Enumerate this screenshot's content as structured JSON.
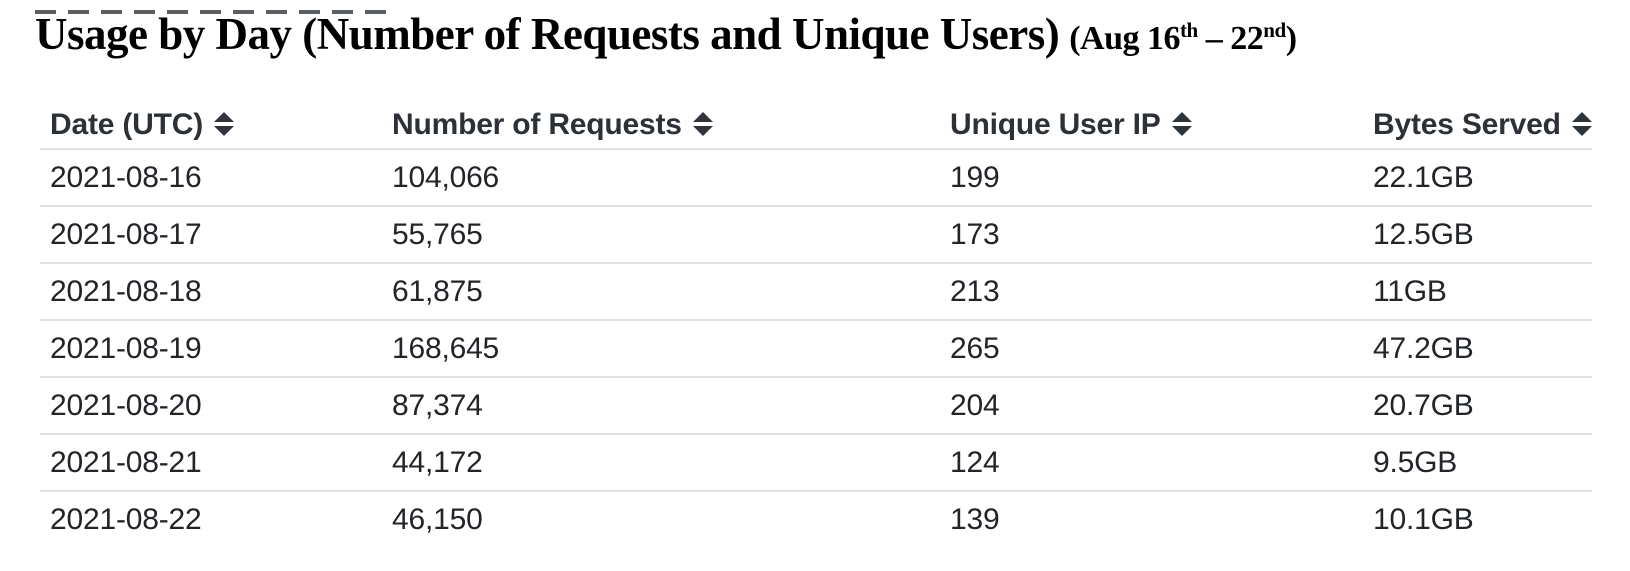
{
  "title": {
    "main": "Usage by Day (Number of Requests and Unique Users)",
    "range": {
      "open": "(Aug 16",
      "sup1": "th",
      "dash": " – ",
      "end": "22",
      "sup2": "nd",
      "close": ")"
    }
  },
  "table": {
    "columns": [
      {
        "label": "Date (UTC)",
        "sortable": true,
        "sort_icon": "sort-arrows-icon"
      },
      {
        "label": "Number of Requests",
        "sortable": true,
        "sort_icon": "sort-arrows-icon"
      },
      {
        "label": "Unique User IP",
        "sortable": true,
        "sort_icon": "sort-arrows-icon"
      },
      {
        "label": "Bytes Served",
        "sortable": true,
        "sort_icon": "sort-arrows-icon"
      }
    ],
    "rows": [
      [
        "2021-08-16",
        "104,066",
        "199",
        "22.1GB"
      ],
      [
        "2021-08-17",
        "55,765",
        "173",
        "12.5GB"
      ],
      [
        "2021-08-18",
        "61,875",
        "213",
        "11GB"
      ],
      [
        "2021-08-19",
        "168,645",
        "265",
        "47.2GB"
      ],
      [
        "2021-08-20",
        "87,374",
        "204",
        "20.7GB"
      ],
      [
        "2021-08-21",
        "44,172",
        "124",
        "9.5GB"
      ],
      [
        "2021-08-22",
        "46,150",
        "139",
        "10.1GB"
      ]
    ]
  },
  "colors": {
    "background": "#ffffff",
    "title_text": "#000000",
    "header_text": "#2b3137",
    "cell_text": "#212529",
    "divider": "#dde1e6",
    "sort_icon": "#30353b"
  }
}
